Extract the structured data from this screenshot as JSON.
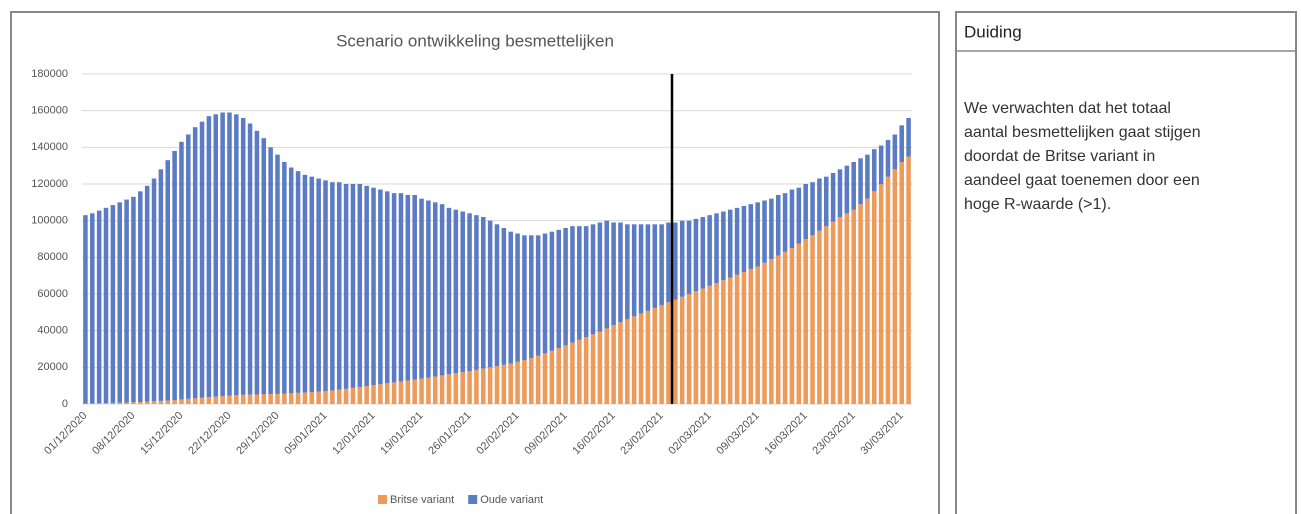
{
  "chart_data": {
    "type": "bar",
    "stacked": true,
    "title": "Scenario ontwikkeling besmettelijken",
    "categories": [
      "01/12/2020",
      null,
      null,
      null,
      null,
      null,
      null,
      "08/12/2020",
      null,
      null,
      null,
      null,
      null,
      null,
      "15/12/2020",
      null,
      null,
      null,
      null,
      null,
      null,
      "22/12/2020",
      null,
      null,
      null,
      null,
      null,
      null,
      "29/12/2020",
      null,
      null,
      null,
      null,
      null,
      null,
      "05/01/2021",
      null,
      null,
      null,
      null,
      null,
      null,
      "12/01/2021",
      null,
      null,
      null,
      null,
      null,
      null,
      "19/01/2021",
      null,
      null,
      null,
      null,
      null,
      null,
      "26/01/2021",
      null,
      null,
      null,
      null,
      null,
      null,
      "02/02/2021",
      null,
      null,
      null,
      null,
      null,
      null,
      "09/02/2021",
      null,
      null,
      null,
      null,
      null,
      null,
      "16/02/2021",
      null,
      null,
      null,
      null,
      null,
      null,
      "23/02/2021",
      null,
      null,
      null,
      null,
      null,
      null,
      "02/03/2021",
      null,
      null,
      null,
      null,
      null,
      null,
      "09/03/2021",
      null,
      null,
      null,
      null,
      null,
      null,
      "16/03/2021",
      null,
      null,
      null,
      null,
      null,
      null,
      "23/03/2021",
      null,
      null,
      null,
      null,
      null,
      null,
      "30/03/2021",
      null
    ],
    "series": [
      {
        "name": "Britse variant",
        "color": "#ed9a5a",
        "values": [
          200,
          300,
          400,
          500,
          600,
          700,
          800,
          1000,
          1100,
          1300,
          1500,
          1700,
          1900,
          2200,
          2500,
          2800,
          3100,
          3400,
          3700,
          4000,
          4300,
          4600,
          4800,
          5000,
          5100,
          5200,
          5300,
          5400,
          5500,
          5700,
          5900,
          6100,
          6300,
          6500,
          6700,
          7000,
          7400,
          7800,
          8300,
          8800,
          9300,
          9800,
          10300,
          10800,
          11300,
          11800,
          12300,
          12800,
          13300,
          13900,
          14400,
          15000,
          15600,
          16200,
          16800,
          17400,
          18000,
          18600,
          19300,
          20000,
          20700,
          21400,
          22100,
          23000,
          24000,
          25100,
          26300,
          27600,
          29000,
          30500,
          32000,
          33500,
          35000,
          36500,
          38000,
          39500,
          41200,
          43000,
          44600,
          46200,
          47800,
          49300,
          50800,
          52400,
          54000,
          55500,
          57000,
          58500,
          60000,
          61500,
          63000,
          64500,
          66000,
          67500,
          69000,
          70500,
          72000,
          73500,
          75000,
          77000,
          79000,
          81000,
          83000,
          85000,
          87500,
          90000,
          92000,
          94500,
          97000,
          99500,
          102000,
          104000,
          106000,
          109000,
          112000,
          116000,
          120000,
          124000,
          128000,
          132000,
          135000
        ]
      },
      {
        "name": "Oude variant",
        "color": "#5b7cc4",
        "values": [
          102800,
          103700,
          105100,
          106500,
          107900,
          109300,
          110700,
          112000,
          114900,
          117700,
          121500,
          126300,
          131100,
          135800,
          140500,
          144200,
          147900,
          150600,
          153300,
          154000,
          154700,
          154400,
          153200,
          151000,
          147900,
          143800,
          139700,
          134600,
          130500,
          126300,
          123100,
          120900,
          118700,
          117500,
          116300,
          115000,
          113600,
          113200,
          111700,
          111200,
          110700,
          109200,
          107700,
          106200,
          104700,
          103200,
          102700,
          101200,
          100700,
          98100,
          96600,
          95000,
          93400,
          90800,
          89200,
          87600,
          86000,
          84400,
          82700,
          80000,
          77300,
          74600,
          71900,
          70000,
          68000,
          66900,
          65700,
          65400,
          65000,
          64500,
          64000,
          63500,
          62000,
          60500,
          60000,
          59500,
          58800,
          56000,
          54400,
          51800,
          50200,
          48700,
          47200,
          45600,
          44000,
          43500,
          42000,
          41500,
          40000,
          39500,
          39000,
          38500,
          38000,
          37500,
          37000,
          36500,
          36000,
          35500,
          35000,
          34000,
          33000,
          33000,
          32000,
          32000,
          30500,
          30000,
          29000,
          28500,
          27000,
          26500,
          26000,
          26000,
          26000,
          25000,
          24000,
          23000,
          21000,
          20000,
          19000,
          20000,
          21000
        ]
      }
    ],
    "ylim": [
      0,
      180000
    ],
    "yticks": [
      0,
      20000,
      40000,
      60000,
      80000,
      100000,
      120000,
      140000,
      160000,
      180000
    ],
    "grid": true,
    "legend": "bottom"
  },
  "panel": {
    "title": "Duiding",
    "lines": [
      "We verwachten dat het totaal",
      "aantal besmettelijken gaat stijgen",
      "doordat de Britse variant in",
      "aandeel gaat toenemen door een",
      "hoge R-waarde (>1)."
    ]
  }
}
